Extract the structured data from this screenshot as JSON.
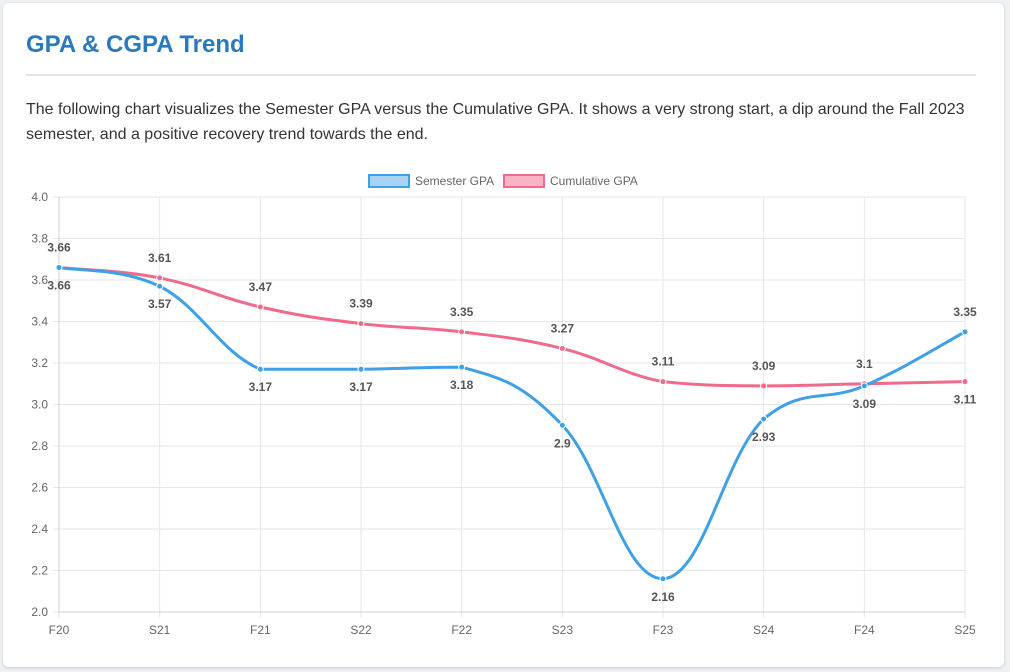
{
  "page": {
    "title": "GPA & CGPA Trend",
    "description": "The following chart visualizes the Semester GPA versus the Cumulative GPA. It shows a very strong start, a dip around the Fall 2023 semester, and a positive recovery trend towards the end."
  },
  "colors": {
    "title": "#2b78be",
    "semester": "#3fa0e6",
    "cumulative": "#f06a8c",
    "grid": "#e6e6e6"
  },
  "chart_data": {
    "type": "line",
    "categories": [
      "F20",
      "S21",
      "F21",
      "S22",
      "F22",
      "S23",
      "F23",
      "S24",
      "F24",
      "S25"
    ],
    "ylim": [
      2.0,
      4.0
    ],
    "yticks": [
      "4.0",
      "3.8",
      "3.6",
      "3.4",
      "3.2",
      "3.0",
      "2.8",
      "2.6",
      "2.4",
      "2.2",
      "2.0"
    ],
    "grid": true,
    "legend": "top-center",
    "series": [
      {
        "name": "Semester GPA",
        "values": [
          3.66,
          3.57,
          3.17,
          3.17,
          3.18,
          2.9,
          2.16,
          2.93,
          3.09,
          3.35
        ],
        "labels": [
          "3.66",
          "3.57",
          "3.17",
          "3.17",
          "3.18",
          "2.9",
          "2.16",
          "2.93",
          "3.09",
          "3.35"
        ]
      },
      {
        "name": "Cumulative GPA",
        "values": [
          3.66,
          3.61,
          3.47,
          3.39,
          3.35,
          3.27,
          3.11,
          3.09,
          3.1,
          3.11
        ],
        "labels": [
          "3.66",
          "3.61",
          "3.47",
          "3.39",
          "3.35",
          "3.27",
          "3.11",
          "3.09",
          "3.1",
          "3.11"
        ]
      }
    ]
  }
}
